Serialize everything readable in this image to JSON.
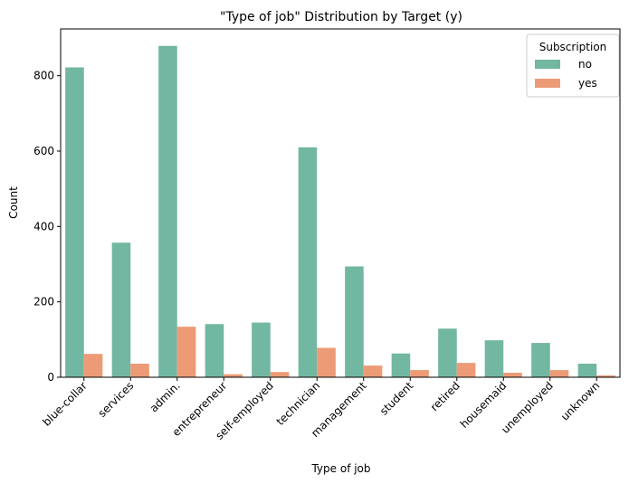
{
  "chart_data": {
    "type": "bar",
    "title": "\"Type of job\" Distribution by Target (y)",
    "xlabel": "Type of job",
    "ylabel": "Count",
    "categories": [
      "blue-collar",
      "services",
      "admin.",
      "entrepreneur",
      "self-employed",
      "technician",
      "management",
      "student",
      "retired",
      "housemaid",
      "unemployed",
      "unknown"
    ],
    "series": [
      {
        "name": "no",
        "color": "#72b7a1",
        "values": [
          822,
          357,
          879,
          141,
          145,
          610,
          294,
          63,
          129,
          98,
          91,
          36
        ]
      },
      {
        "name": "yes",
        "color": "#ec9b76",
        "values": [
          62,
          36,
          134,
          8,
          14,
          78,
          31,
          19,
          38,
          12,
          19,
          5
        ]
      }
    ],
    "ylim": [
      0,
      924
    ],
    "yticks": [
      0,
      200,
      400,
      600,
      800
    ],
    "legend": {
      "title": "Subscription",
      "position": "top-right"
    },
    "grid": false
  }
}
